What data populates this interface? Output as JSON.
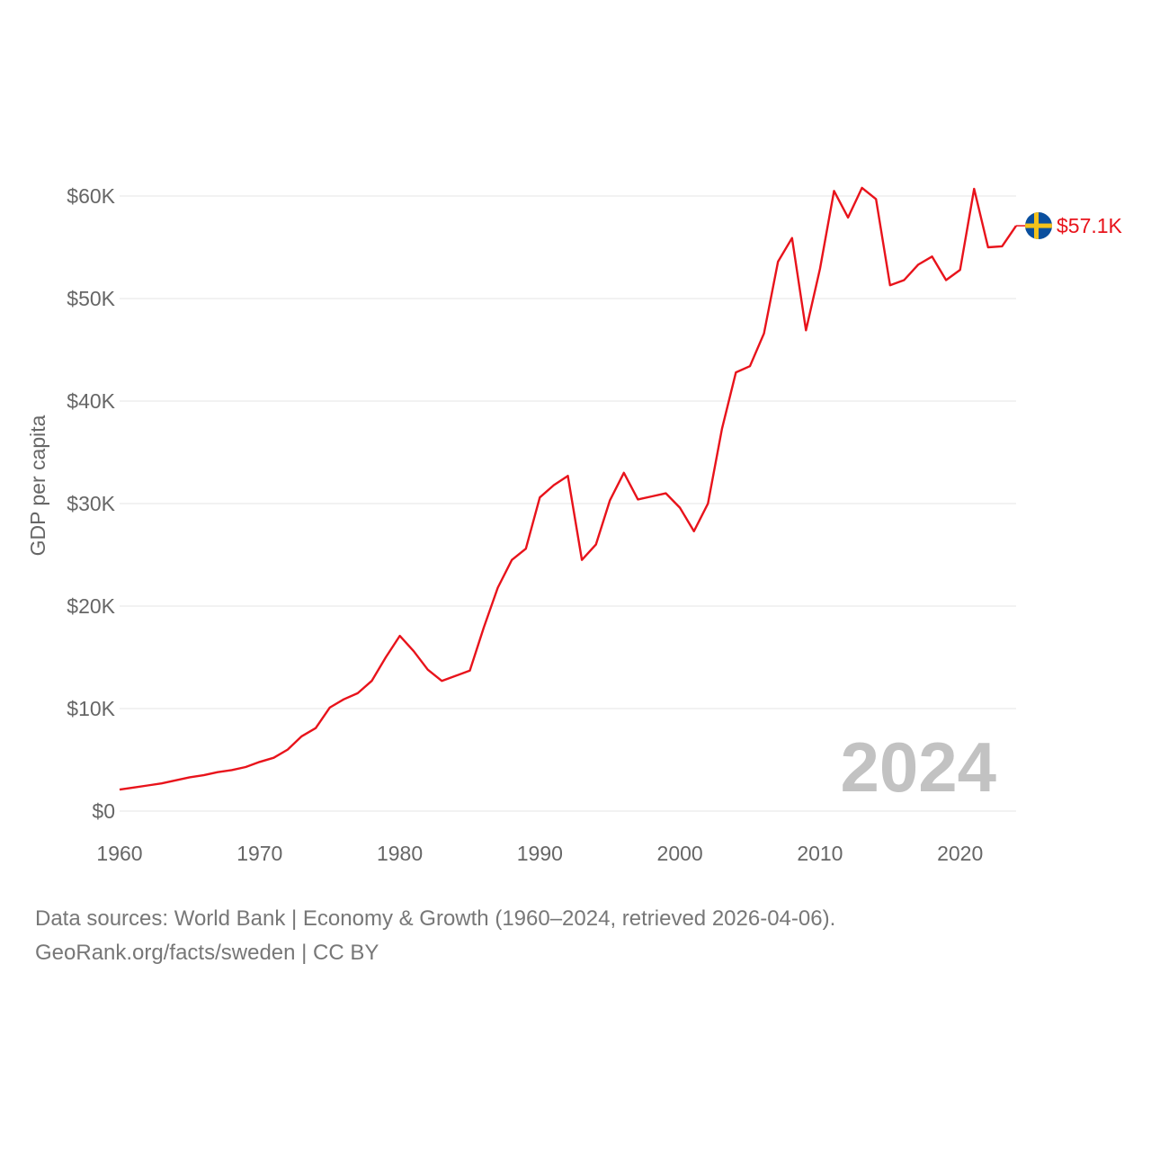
{
  "chart_data": {
    "type": "line",
    "title": "",
    "xlabel": "",
    "ylabel": "GDP per capita",
    "xlim": [
      1960,
      2024
    ],
    "ylim": [
      0,
      60000
    ],
    "y_ticks": [
      0,
      10000,
      20000,
      30000,
      40000,
      50000,
      60000
    ],
    "y_tick_labels": [
      "$0",
      "$10K",
      "$20K",
      "$30K",
      "$40K",
      "$50K",
      "$60K"
    ],
    "x_ticks": [
      1960,
      1970,
      1980,
      1990,
      2000,
      2010,
      2020
    ],
    "x_tick_labels": [
      "1960",
      "1970",
      "1980",
      "1990",
      "2000",
      "2010",
      "2020"
    ],
    "grid": true,
    "year_label": "2024",
    "series": [
      {
        "name": "Sweden",
        "color": "#e8131b",
        "end_label": "$57.1K",
        "marker": "sweden-flag",
        "x": [
          1960,
          1961,
          1962,
          1963,
          1964,
          1965,
          1966,
          1967,
          1968,
          1969,
          1970,
          1971,
          1972,
          1973,
          1974,
          1975,
          1976,
          1977,
          1978,
          1979,
          1980,
          1981,
          1982,
          1983,
          1984,
          1985,
          1986,
          1987,
          1988,
          1989,
          1990,
          1991,
          1992,
          1993,
          1994,
          1995,
          1996,
          1997,
          1998,
          1999,
          2000,
          2001,
          2002,
          2003,
          2004,
          2005,
          2006,
          2007,
          2008,
          2009,
          2010,
          2011,
          2012,
          2013,
          2014,
          2015,
          2016,
          2017,
          2018,
          2019,
          2020,
          2021,
          2022,
          2023,
          2024
        ],
        "values": [
          2100,
          2300,
          2500,
          2700,
          3000,
          3300,
          3500,
          3800,
          4000,
          4300,
          4800,
          5200,
          6000,
          7300,
          8100,
          10100,
          10900,
          11500,
          12700,
          15000,
          17100,
          15600,
          13800,
          12700,
          13200,
          13700,
          17900,
          21800,
          24500,
          25600,
          30600,
          31800,
          32700,
          24500,
          26000,
          30300,
          33000,
          30400,
          30700,
          31000,
          29600,
          27300,
          30000,
          37300,
          42800,
          43400,
          46600,
          53600,
          55900,
          46900,
          52900,
          60500,
          57900,
          60800,
          59700,
          51300,
          51800,
          53300,
          54100,
          51800,
          52800,
          60700,
          55000,
          55100,
          57100
        ]
      }
    ]
  },
  "footer": {
    "line1": "Data sources: World Bank | Economy & Growth (1960–2024, retrieved 2026-04-06).",
    "line2": "GeoRank.org/facts/sweden | CC BY"
  },
  "colors": {
    "line": "#e8131b",
    "grid": "#e6e6e6",
    "text": "#666666",
    "year": "#c2c2c2",
    "flag_blue": "#0a4f9e",
    "flag_yellow": "#f4c21b"
  }
}
